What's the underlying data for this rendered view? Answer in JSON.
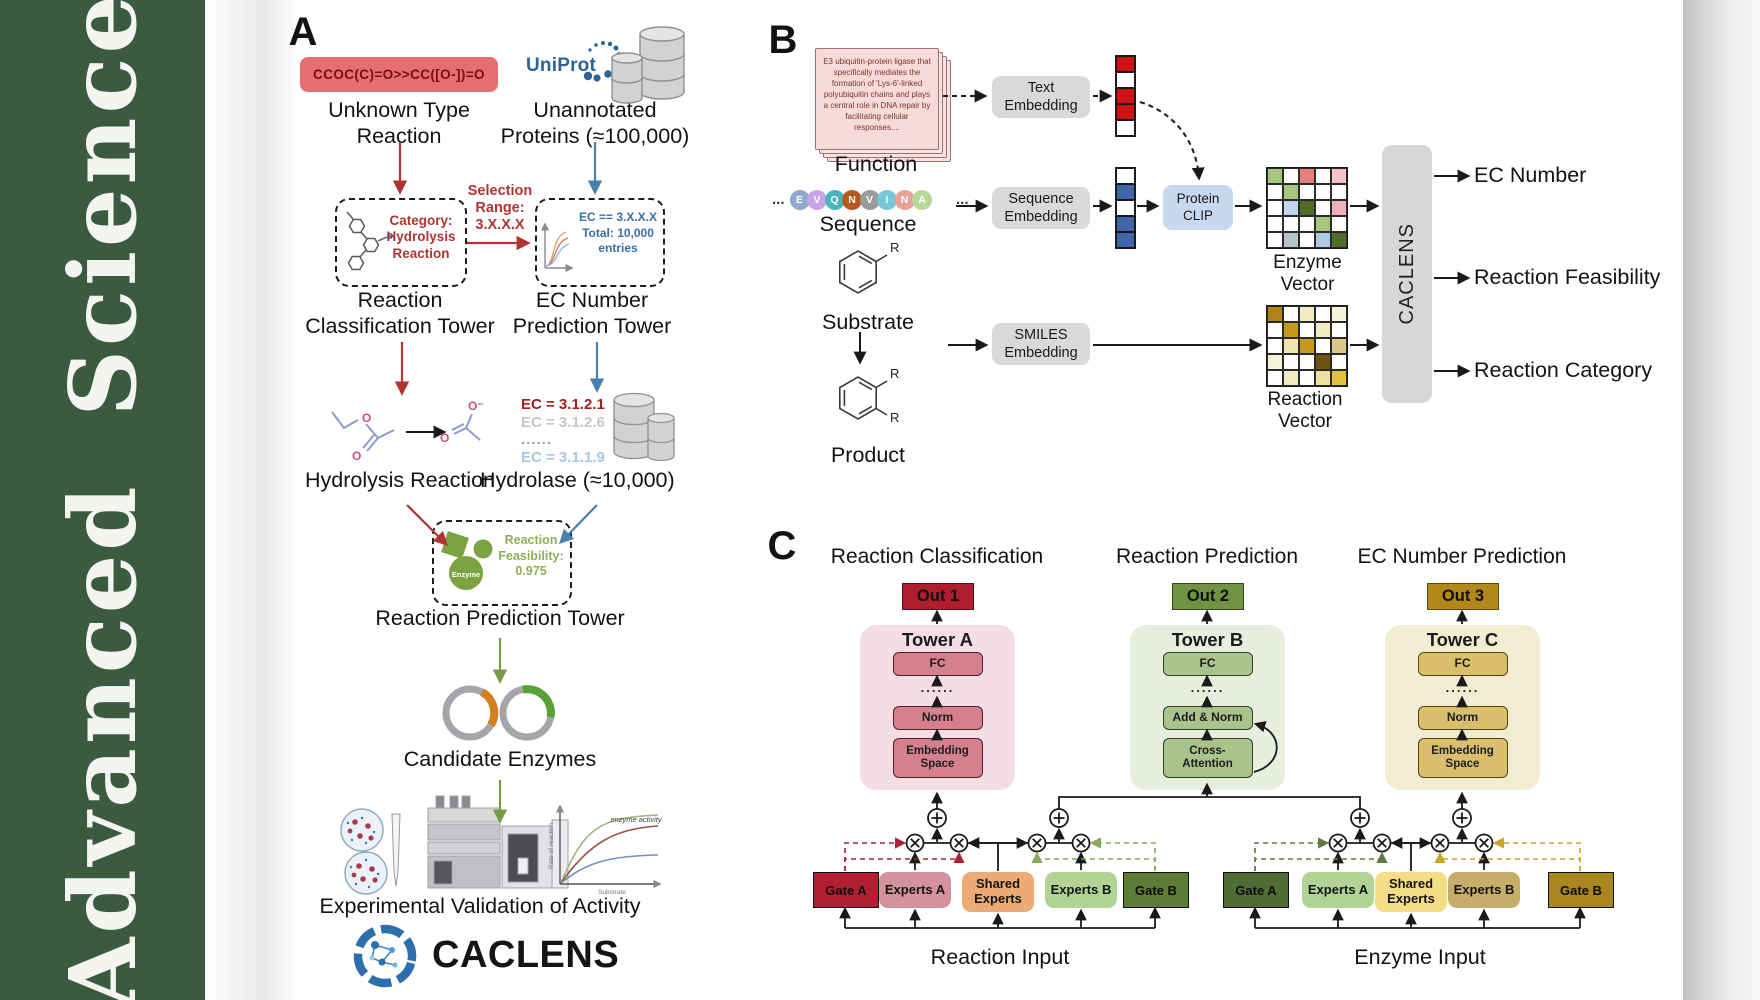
{
  "sidebar": {
    "text": "Advanced Science"
  },
  "colors": {
    "sidebar_green": "#3b5b41",
    "accent_red": "#b03434",
    "accent_blue": "#4b80ab",
    "accent_green": "#789a4b",
    "uniprot_blue": "#2c6396",
    "smiles_box": "#e66e70",
    "out1": "#b01e2e",
    "out2": "#6f9243",
    "out3": "#b3881b"
  },
  "panelA": {
    "label": "A",
    "smiles": "CCOC(C)=O>>CC([O-])=O",
    "unknown_reaction": "Unknown Type\nReaction",
    "uniprot": "UniProt",
    "unannotated": "Unannotated\nProteins (≈100,000)",
    "selection": "Selection\nRange:\n3.X.X.X",
    "category": "Category:\nHydrolysis\nReaction",
    "ec_filter": "EC == 3.X.X.X\nTotal: 10,000\nentries",
    "classification_tower": "Reaction\nClassification Tower",
    "ec_tower": "EC Number\nPrediction Tower",
    "hydrolysis": "Hydrolysis Reaction",
    "ec_list": [
      "EC = 3.1.2.1",
      "EC = 3.1.2.6",
      "......",
      "EC = 3.1.1.9"
    ],
    "hydrolase": "Hydrolase (≈10,000)",
    "enzyme": "Enzyme",
    "feasibility": "Reaction\nFeasibility:\n0.975",
    "prediction_tower": "Reaction Prediction Tower",
    "candidates": "Candidate Enzymes",
    "validation": "Experimental Validation of Activity",
    "logo": "CACLENS",
    "plot": {
      "ylabel": "Rate of reaction",
      "xlabel": "Substrate",
      "annotation": "enzyme activity"
    }
  },
  "panelB": {
    "label": "B",
    "function_card": "E3 ubiquitin-protein ligase that specifically mediates the formation of 'Lys-6'-linked polyubiquitin chains and plays a central role in DNA repair by facilitating cellular responses....",
    "function": "Function",
    "ellipsis": "...",
    "sequence_letters": [
      "E",
      "V",
      "Q",
      "N",
      "V",
      "I",
      "N",
      "A"
    ],
    "sequence_colors": [
      "#8fa9cc",
      "#c9a3e8",
      "#49b6bc",
      "#b55a1e",
      "#9b9b9b",
      "#79c7d8",
      "#e89f96",
      "#b8d89a"
    ],
    "sequence": "Sequence",
    "substrate": "Substrate",
    "product": "Product",
    "r_label": "R",
    "text_embedding": "Text\nEmbedding",
    "sequence_embedding": "Sequence\nEmbedding",
    "smiles_embedding": "SMILES\nEmbedding",
    "protein_clip": "Protein\nCLIP",
    "text_vector": [
      "#cc1414",
      "#ffffff",
      "#cc1414",
      "#cc1414",
      "#ffffff"
    ],
    "sequence_vector": [
      "#ffffff",
      "#3e66a8",
      "#ffffff",
      "#3e66a8",
      "#3e66a8"
    ],
    "enzyme_vector_label": "Enzyme Vector",
    "reaction_vector_label": "Reaction Vector",
    "enzyme_vector": [
      "#a6c77d",
      "#ffffff",
      "#e77f7f",
      "#ffffff",
      "#f2c4c8",
      "#ffffff",
      "#a6c77d",
      "#ffffff",
      "#ffffff",
      "#ffffff",
      "#ffffff",
      "#c3d5ec",
      "#4e6e2a",
      "#ffffff",
      "#eeb1b7",
      "#ffffff",
      "#ffffff",
      "#ffffff",
      "#a6c77d",
      "#ffffff",
      "#ffffff",
      "#b5c3cd",
      "#ffffff",
      "#b0c8e4",
      "#4e6e2a"
    ],
    "reaction_vector": [
      "#b08318",
      "#ffffff",
      "#f3ecc0",
      "#ffffff",
      "#f8f2d8",
      "#ffffff",
      "#c39a1e",
      "#ffffff",
      "#f3ecc0",
      "#ffffff",
      "#ffffff",
      "#efe5b2",
      "#c39a1e",
      "#ffffff",
      "#dcc98a",
      "#f8f2d8",
      "#ffffff",
      "#ffffff",
      "#6e5410",
      "#ffffff",
      "#ffffff",
      "#f3ecc0",
      "#ffffff",
      "#efe0a0",
      "#e3c240"
    ],
    "caclens": "CACLENS",
    "outputs": [
      "EC Number",
      "Reaction Feasibility",
      "Reaction Category"
    ]
  },
  "panelC": {
    "label": "C",
    "columns": [
      {
        "header": "Reaction Classification",
        "out": "Out 1",
        "tower": "Tower A",
        "fc": "FC",
        "dots": "......",
        "mid": "Norm",
        "bottom": "Embedding\nSpace"
      },
      {
        "header": "Reaction Prediction",
        "out": "Out 2",
        "tower": "Tower B",
        "fc": "FC",
        "dots": "......",
        "mid": "Add & Norm",
        "bottom": "Cross-\nAttention"
      },
      {
        "header": "EC Number Prediction",
        "out": "Out 3",
        "tower": "Tower C",
        "fc": "FC",
        "dots": "......",
        "mid": "Norm",
        "bottom": "Embedding\nSpace"
      }
    ],
    "left_gates": [
      "Gate A",
      "Experts A",
      "Shared\nExperts",
      "Experts B",
      "Gate B"
    ],
    "right_gates": [
      "Gate A",
      "Experts A",
      "Shared\nExperts",
      "Experts B",
      "Gate B"
    ],
    "left_input": "Reaction Input",
    "right_input": "Enzyme Input"
  }
}
